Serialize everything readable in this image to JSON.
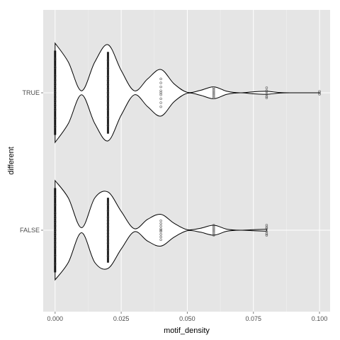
{
  "chart_data": {
    "type": "violin",
    "title": "",
    "xlabel": "motif_density",
    "ylabel": "different",
    "xlim": [
      -0.0045,
      0.104
    ],
    "x_ticks": [
      {
        "value": 0.0,
        "label": "0.000"
      },
      {
        "value": 0.025,
        "label": "0.025"
      },
      {
        "value": 0.05,
        "label": "0.050"
      },
      {
        "value": 0.075,
        "label": "0.075"
      },
      {
        "value": 0.1,
        "label": "0.100"
      }
    ],
    "categories": [
      "TRUE",
      "FALSE"
    ],
    "grid": true,
    "panel_background": "#e5e5e5",
    "grid_color": "#ffffff",
    "violin_fill": "#ffffff",
    "violin_stroke": "#000000",
    "point_color": "#000000",
    "series": [
      {
        "category": "TRUE",
        "violin_profile": {
          "x": [
            0.0,
            0.005,
            0.01,
            0.015,
            0.02,
            0.025,
            0.03,
            0.035,
            0.04,
            0.045,
            0.05,
            0.055,
            0.06,
            0.065,
            0.07,
            0.075,
            0.08,
            0.085,
            0.09,
            0.1
          ],
          "relative_width": [
            1.0,
            0.62,
            0.04,
            0.62,
            0.97,
            0.45,
            0.04,
            0.28,
            0.47,
            0.18,
            0.01,
            0.05,
            0.12,
            0.03,
            0.0,
            0.02,
            0.03,
            0.005,
            0.0,
            0.0
          ]
        },
        "points": [
          {
            "value": 0.0,
            "rel_y": [
              -0.8,
              -0.6,
              -0.4,
              -0.3,
              -0.2,
              -0.1,
              0.0,
              0.1,
              0.2,
              0.3,
              0.4,
              0.6,
              0.8
            ]
          },
          {
            "value": 0.02,
            "rel_y": [
              -0.8,
              -0.6,
              -0.4,
              -0.3,
              -0.2,
              -0.1,
              0.0,
              0.1,
              0.2,
              0.3,
              0.4,
              0.6,
              0.8
            ]
          },
          {
            "value": 0.04,
            "rel_y": [
              -0.7,
              -0.5,
              -0.3,
              -0.1,
              0.0,
              0.1,
              0.3,
              0.5,
              0.7
            ]
          },
          {
            "value": 0.06,
            "rel_y": [
              -0.7,
              -0.5,
              -0.3,
              -0.1,
              0.1,
              0.3,
              0.5,
              0.7
            ]
          },
          {
            "value": 0.08,
            "rel_y": [
              -0.7,
              -0.3,
              -0.15,
              0.2,
              0.5,
              0.7
            ]
          },
          {
            "value": 0.1,
            "rel_y": [
              -0.2,
              0.0,
              0.2
            ]
          }
        ]
      },
      {
        "category": "FALSE",
        "violin_profile": {
          "x": [
            0.0,
            0.005,
            0.01,
            0.015,
            0.02,
            0.025,
            0.03,
            0.035,
            0.04,
            0.045,
            0.05,
            0.055,
            0.06,
            0.065,
            0.07,
            0.075,
            0.08
          ],
          "relative_width": [
            1.0,
            0.65,
            0.05,
            0.65,
            0.77,
            0.38,
            0.03,
            0.22,
            0.32,
            0.14,
            0.01,
            0.04,
            0.1,
            0.02,
            0.0,
            0.01,
            0.02
          ]
        },
        "points": [
          {
            "value": 0.0,
            "rel_y": [
              -0.8,
              -0.6,
              -0.4,
              -0.3,
              -0.2,
              -0.1,
              0.0,
              0.1,
              0.2,
              0.3,
              0.4,
              0.6,
              0.8
            ]
          },
          {
            "value": 0.02,
            "rel_y": [
              -0.8,
              -0.6,
              -0.4,
              -0.3,
              -0.2,
              -0.1,
              0.0,
              0.1,
              0.2,
              0.3,
              0.4,
              0.6,
              0.8
            ]
          },
          {
            "value": 0.04,
            "rel_y": [
              -0.7,
              -0.5,
              -0.3,
              -0.1,
              0.0,
              0.1,
              0.3,
              0.5,
              0.7
            ]
          },
          {
            "value": 0.06,
            "rel_y": [
              -0.7,
              -0.5,
              -0.3,
              -0.1,
              0.1,
              0.3,
              0.5,
              0.7
            ]
          },
          {
            "value": 0.08,
            "rel_y": [
              -0.7,
              -0.4,
              -0.2,
              0.2,
              0.5,
              0.7
            ]
          }
        ]
      }
    ]
  }
}
